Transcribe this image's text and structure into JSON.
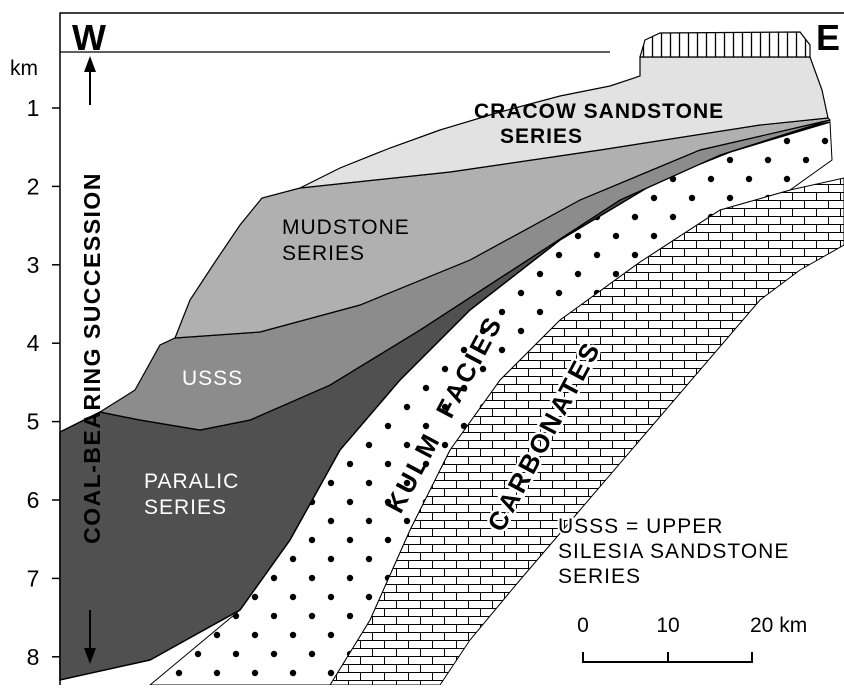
{
  "labels": {
    "west": "W",
    "east": "E"
  },
  "depth_axis": {
    "unit": "km",
    "ticks": [
      1,
      2,
      3,
      4,
      5,
      6,
      7,
      8
    ]
  },
  "vertical_label": "COAL-BEARING SUCCESSION",
  "units": {
    "cracow": [
      "CRACOW SANDSTONE",
      "SERIES"
    ],
    "mudstone": [
      "MUDSTONE",
      "SERIES"
    ],
    "usss": "USSS",
    "paralic": [
      "PARALIC",
      "SERIES"
    ],
    "kulm": "KULM  FACIES",
    "carbonates": "CARBONATES"
  },
  "legend": [
    "USSS = UPPER",
    "SILESIA SANDSTONE",
    "SERIES"
  ],
  "scale_bar": [
    "0",
    "10",
    "20 km"
  ]
}
